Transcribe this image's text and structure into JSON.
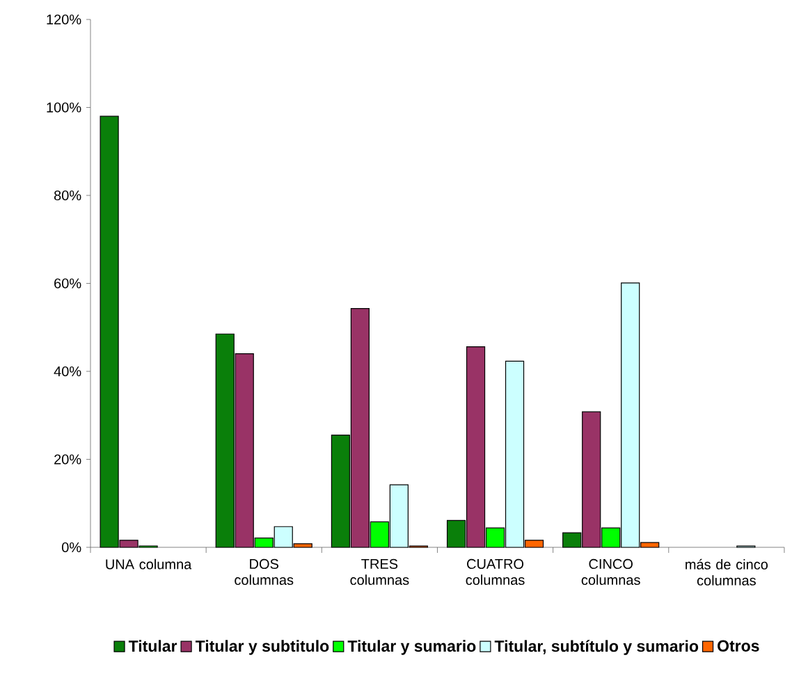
{
  "chart_data": {
    "type": "bar",
    "categories": [
      "UNA columna",
      "DOS columnas",
      "TRES columnas",
      "CUATRO columnas",
      "CINCO columnas",
      "más de cinco columnas"
    ],
    "series": [
      {
        "name": "Titular",
        "color": "#0a7f0a",
        "values": [
          98,
          48.5,
          25.5,
          6.1,
          3.3,
          null
        ]
      },
      {
        "name": "Titular y subtitulo",
        "color": "#993366",
        "values": [
          1.6,
          44,
          54.3,
          45.6,
          30.8,
          null
        ]
      },
      {
        "name": "Titular y sumario",
        "color": "#00ff00",
        "values": [
          0.3,
          2.1,
          5.8,
          4.4,
          4.4,
          null
        ]
      },
      {
        "name": "Titular, subtítulo y sumario",
        "color": "#ccffff",
        "values": [
          null,
          4.7,
          14.2,
          42.3,
          60.1,
          0.3
        ]
      },
      {
        "name": "Otros",
        "color": "#ff6600",
        "values": [
          null,
          0.8,
          0.3,
          1.6,
          1.1,
          null
        ]
      }
    ],
    "ylim": [
      0,
      120
    ],
    "yticks": [
      {
        "value": 0,
        "label": "0%"
      },
      {
        "value": 20,
        "label": "20%"
      },
      {
        "value": 40,
        "label": "40%"
      },
      {
        "value": 60,
        "label": "60%"
      },
      {
        "value": 80,
        "label": "80%"
      },
      {
        "value": 100,
        "label": "100%"
      },
      {
        "value": 120,
        "label": "120%"
      }
    ],
    "grid": false,
    "legend": "bottom"
  }
}
